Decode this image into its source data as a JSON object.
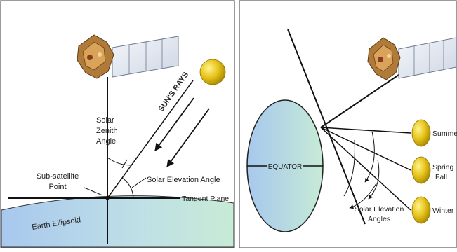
{
  "left_panel": {
    "labels": {
      "sun_rays": "SUN'S RAYS",
      "solar_zenith_angle": [
        "Solar",
        "Zenith",
        "Angle"
      ],
      "solar_elevation_angle": "Solar Elevation Angle",
      "sub_satellite_point": [
        "Sub-satellite",
        "Point"
      ],
      "tangent_plane": "Tangent Plane",
      "earth_ellipsoid": "Earth Ellipsoid"
    }
  },
  "right_panel": {
    "labels": {
      "equator": "EQUATOR",
      "summer": "Summer",
      "spring_fall": [
        "Spring",
        "Fall"
      ],
      "winter": "Winter",
      "solar_elevation_angles": [
        "Solar Elevation",
        "Angles"
      ]
    }
  },
  "colors": {
    "sun": "#e6c21a",
    "earth_blue": "#a8c8ee",
    "earth_green": "#c7ebd6",
    "line": "#111111",
    "panel_border": "#7a7a7a",
    "satellite_panel": "#e9edf5",
    "satellite_body": "#b07a3a"
  },
  "icons": [
    "satellite-icon",
    "sun-icon"
  ]
}
